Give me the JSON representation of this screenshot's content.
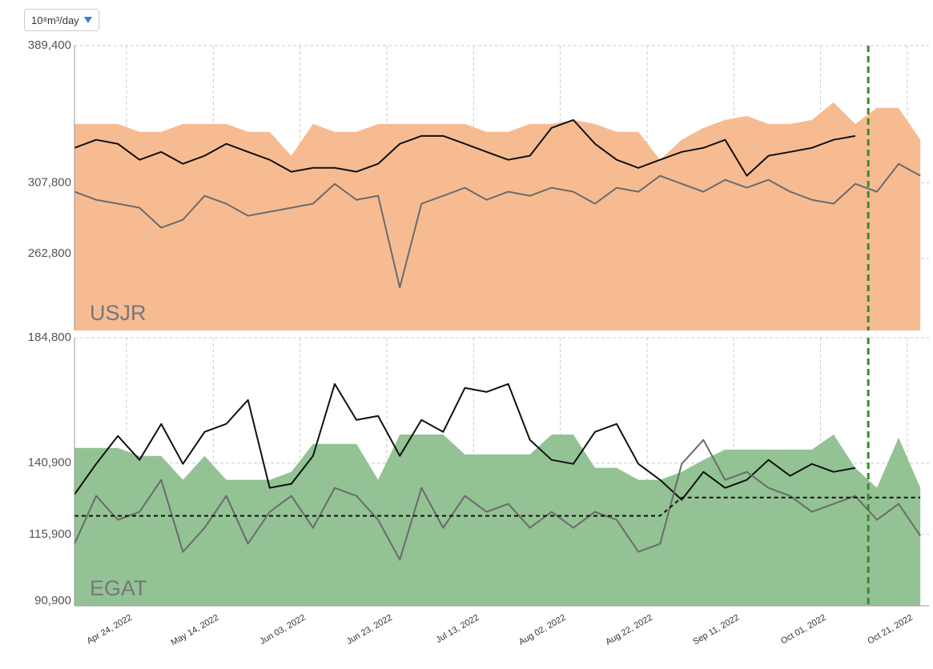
{
  "unit_selector": "10⁸m³/day",
  "chart_data": [
    {
      "type": "line",
      "label": "USJR",
      "x": [
        "2022-04-12",
        "2022-04-17",
        "2022-04-22",
        "2022-04-27",
        "2022-05-02",
        "2022-05-07",
        "2022-05-12",
        "2022-05-17",
        "2022-05-22",
        "2022-05-27",
        "2022-06-01",
        "2022-06-06",
        "2022-06-11",
        "2022-06-16",
        "2022-06-21",
        "2022-06-26",
        "2022-07-01",
        "2022-07-06",
        "2022-07-11",
        "2022-07-16",
        "2022-07-21",
        "2022-07-26",
        "2022-07-31",
        "2022-08-05",
        "2022-08-10",
        "2022-08-15",
        "2022-08-20",
        "2022-08-25",
        "2022-08-30",
        "2022-09-04",
        "2022-09-09",
        "2022-09-14",
        "2022-09-19",
        "2022-09-24",
        "2022-09-29",
        "2022-10-04",
        "2022-10-09",
        "2022-10-14",
        "2022-10-19",
        "2022-10-24"
      ],
      "xlim": [
        "2022-04-12",
        "2022-10-26"
      ],
      "xticks": [
        "2022-04-24",
        "2022-05-14",
        "2022-06-03",
        "2022-06-23",
        "2022-07-13",
        "2022-08-02",
        "2022-08-22",
        "2022-09-11",
        "2022-10-01",
        "2022-10-21"
      ],
      "ylim": [
        220000,
        389400
      ],
      "yticks": [
        {
          "value": 389400,
          "label": "389,400"
        },
        {
          "value": 307800,
          "label": "307,800"
        },
        {
          "value": 262800,
          "label": "262,800"
        }
      ],
      "grid": true,
      "forecast_start": "2022-10-12",
      "series": [
        {
          "kind": "area",
          "color": "#f7bb92",
          "values": [
            342850,
            342850,
            342850,
            338100,
            338100,
            342850,
            342850,
            342850,
            338100,
            338100,
            323900,
            342850,
            338100,
            338100,
            342850,
            342850,
            342850,
            342850,
            342850,
            338100,
            338100,
            342850,
            342850,
            345200,
            342850,
            338100,
            338100,
            321500,
            333400,
            340500,
            345200,
            347600,
            342850,
            342850,
            345200,
            355700,
            342850,
            352400,
            352400,
            333400
          ]
        },
        {
          "kind": "line",
          "color": "#111111",
          "values": [
            328600,
            333400,
            331000,
            321500,
            326200,
            319100,
            323900,
            331000,
            326200,
            321500,
            314400,
            316700,
            316700,
            314400,
            319100,
            331000,
            335700,
            335700,
            331000,
            326200,
            321500,
            323900,
            340500,
            345200,
            331000,
            321500,
            316700,
            321500,
            326200,
            328600,
            333400,
            312000,
            323900,
            326200,
            328600,
            333400,
            335700,
            null,
            null,
            null
          ]
        },
        {
          "kind": "line",
          "color": "#6b6b6b",
          "values": [
            302500,
            297700,
            295400,
            293000,
            281100,
            285900,
            300100,
            295400,
            288200,
            290600,
            293000,
            295400,
            307200,
            297700,
            300100,
            245500,
            295400,
            300100,
            304900,
            297700,
            302500,
            300100,
            304900,
            302500,
            295400,
            304900,
            302500,
            312000,
            307200,
            302500,
            309600,
            304900,
            309600,
            302500,
            297700,
            295400,
            307200,
            302500,
            319100,
            312000
          ]
        }
      ]
    },
    {
      "type": "line",
      "label": "EGAT",
      "x": [
        "2022-04-12",
        "2022-04-17",
        "2022-04-22",
        "2022-04-27",
        "2022-05-02",
        "2022-05-07",
        "2022-05-12",
        "2022-05-17",
        "2022-05-22",
        "2022-05-27",
        "2022-06-01",
        "2022-06-06",
        "2022-06-11",
        "2022-06-16",
        "2022-06-21",
        "2022-06-26",
        "2022-07-01",
        "2022-07-06",
        "2022-07-11",
        "2022-07-16",
        "2022-07-21",
        "2022-07-26",
        "2022-07-31",
        "2022-08-05",
        "2022-08-10",
        "2022-08-15",
        "2022-08-20",
        "2022-08-25",
        "2022-08-30",
        "2022-09-04",
        "2022-09-09",
        "2022-09-14",
        "2022-09-19",
        "2022-09-24",
        "2022-09-29",
        "2022-10-04",
        "2022-10-09",
        "2022-10-14",
        "2022-10-19",
        "2022-10-24"
      ],
      "xlim": [
        "2022-04-12",
        "2022-10-26"
      ],
      "xticks": [
        {
          "value": "2022-04-24",
          "label": "Apr 24, 2022"
        },
        {
          "value": "2022-05-14",
          "label": "May 14, 2022"
        },
        {
          "value": "2022-06-03",
          "label": "Jun 03, 2022"
        },
        {
          "value": "2022-06-23",
          "label": "Jun 23, 2022"
        },
        {
          "value": "2022-07-13",
          "label": "Jul 13, 2022"
        },
        {
          "value": "2022-08-02",
          "label": "Aug 02, 2022"
        },
        {
          "value": "2022-08-22",
          "label": "Aug 22, 2022"
        },
        {
          "value": "2022-09-11",
          "label": "Sep 11, 2022"
        },
        {
          "value": "2022-10-01",
          "label": "Oct 01, 2022"
        },
        {
          "value": "2022-10-21",
          "label": "Oct 21, 2022"
        }
      ],
      "ylim": [
        90900,
        184800
      ],
      "yticks": [
        {
          "value": 184800,
          "label": "184,800"
        },
        {
          "value": 140900,
          "label": "140,900"
        },
        {
          "value": 115900,
          "label": "115,900"
        },
        {
          "value": 90900,
          "label": "90,900"
        }
      ],
      "grid": true,
      "forecast_start": "2022-10-12",
      "series": [
        {
          "kind": "area",
          "color": "#93c295",
          "values": [
            146200,
            146200,
            146200,
            143400,
            143400,
            135000,
            143400,
            135000,
            135000,
            135000,
            137800,
            147600,
            147600,
            147600,
            135000,
            150900,
            150900,
            150900,
            143900,
            143900,
            143900,
            143900,
            150900,
            150900,
            139200,
            139200,
            135000,
            135000,
            137800,
            142000,
            145600,
            145600,
            145600,
            145600,
            145600,
            150900,
            139200,
            132200,
            149800,
            132200
          ]
        },
        {
          "kind": "line",
          "color": "#111111",
          "values": [
            129900,
            140600,
            150400,
            142000,
            154600,
            140600,
            151800,
            154600,
            163000,
            132200,
            133600,
            143400,
            168600,
            156000,
            157400,
            143400,
            156000,
            151800,
            167200,
            165800,
            168600,
            149000,
            142000,
            140600,
            151800,
            154600,
            140600,
            135000,
            128000,
            137800,
            132200,
            135000,
            142000,
            136400,
            140600,
            137800,
            139200,
            null,
            null,
            null
          ]
        },
        {
          "kind": "line",
          "color": "#6b6b6b",
          "values": [
            112600,
            129400,
            121000,
            123800,
            135000,
            109800,
            118200,
            129400,
            112600,
            123800,
            129400,
            118200,
            132200,
            129400,
            121000,
            107000,
            132200,
            118200,
            129400,
            123800,
            126600,
            118200,
            123800,
            118200,
            123800,
            121000,
            109800,
            112600,
            140600,
            149000,
            135000,
            137800,
            132200,
            129400,
            123800,
            126600,
            129400,
            121000,
            126600,
            115400
          ]
        },
        {
          "kind": "line",
          "color": "#111111",
          "dash": true,
          "values": [
            122400,
            122400,
            122400,
            122400,
            122400,
            122400,
            122400,
            122400,
            122400,
            122400,
            122400,
            122400,
            122400,
            122400,
            122400,
            122400,
            122400,
            122400,
            122400,
            122400,
            122400,
            122400,
            122400,
            122400,
            122400,
            122400,
            122400,
            122400,
            128800,
            128800,
            128800,
            128800,
            128800,
            128800,
            128800,
            128800,
            128800,
            128800,
            128800,
            128800
          ]
        }
      ]
    }
  ]
}
